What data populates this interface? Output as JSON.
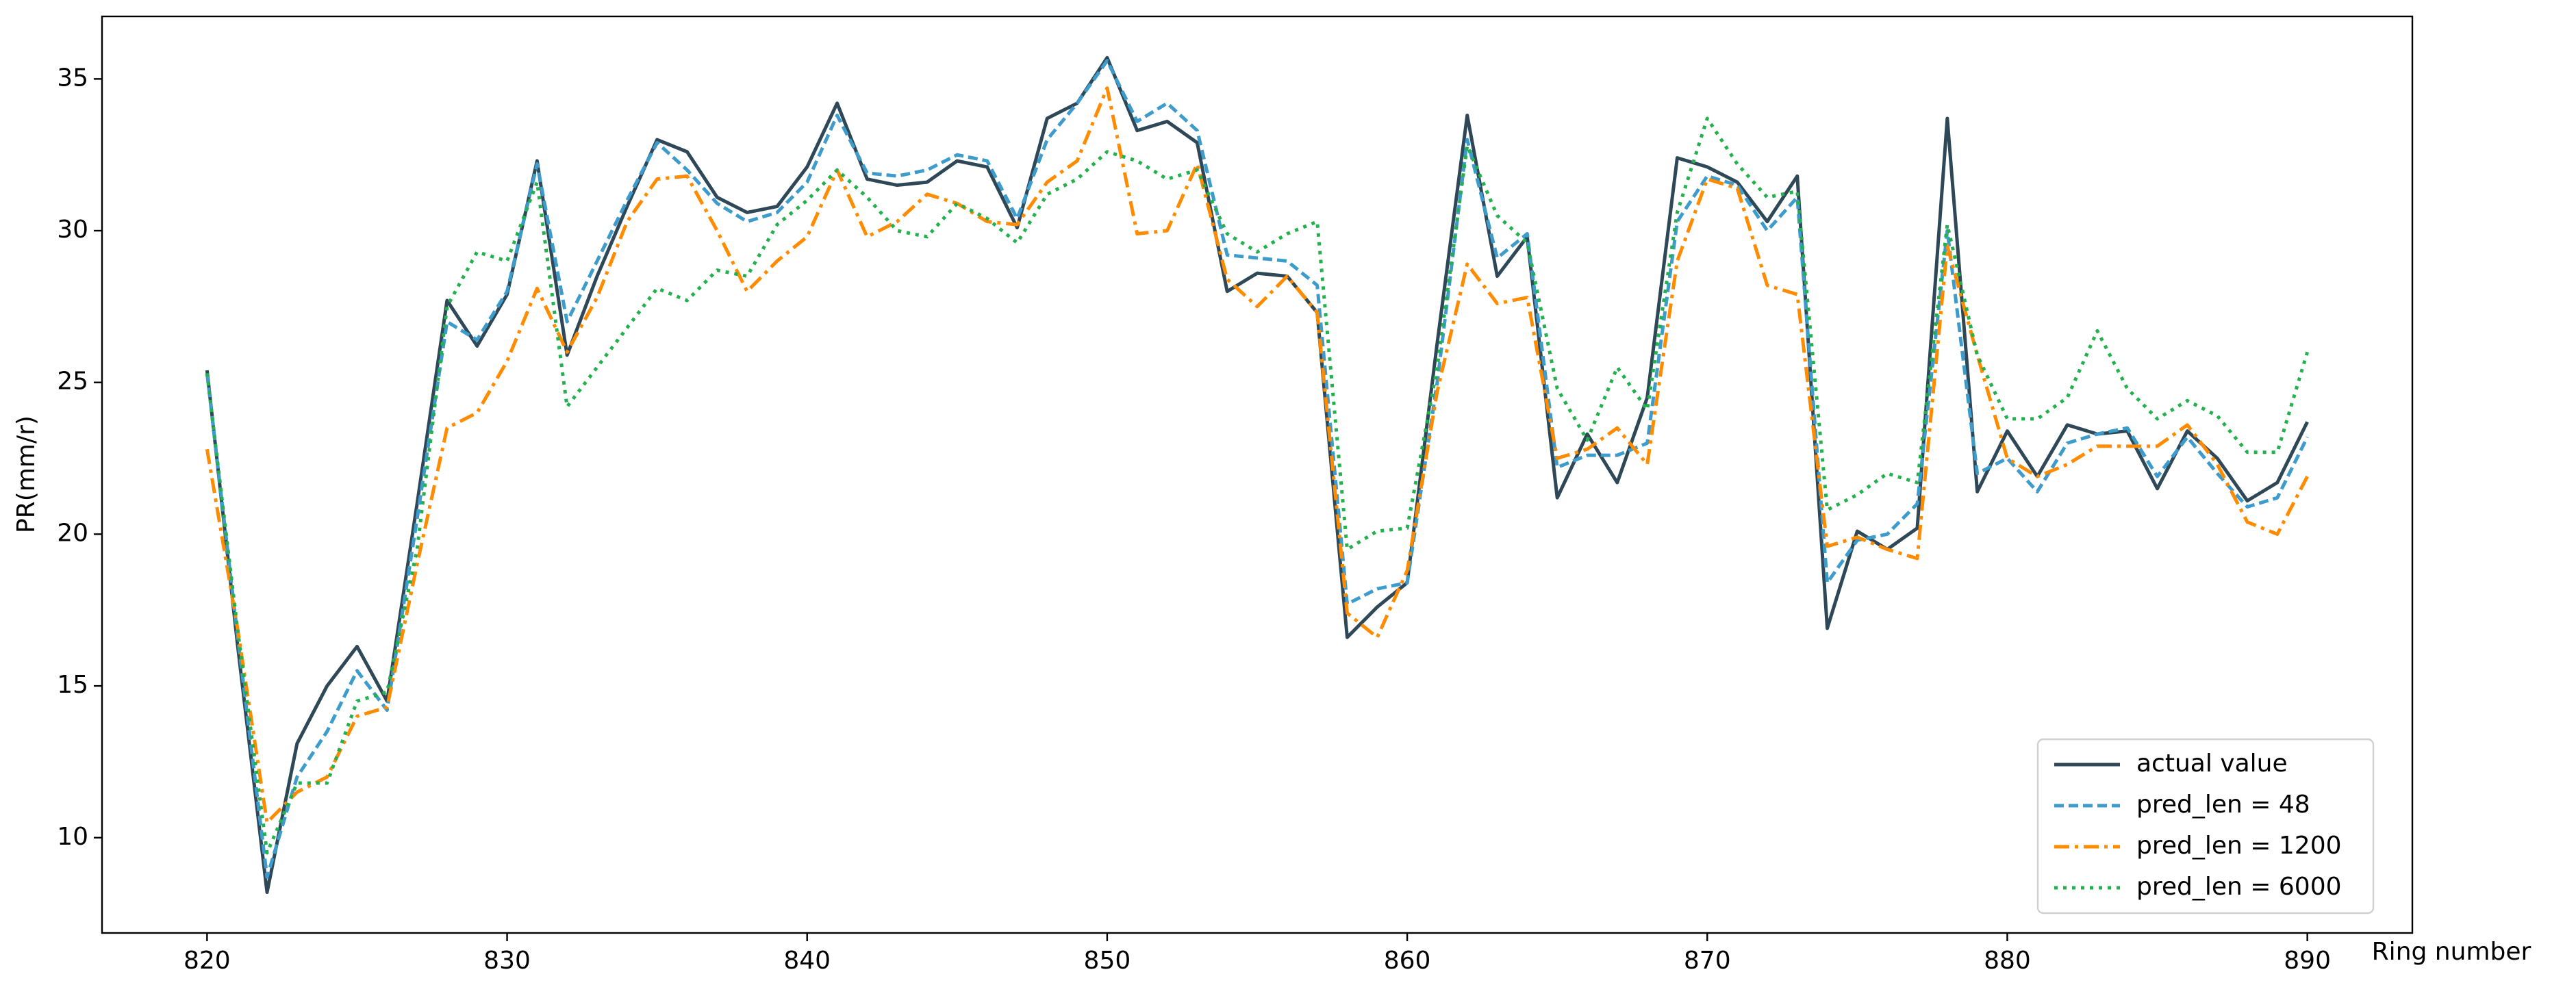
{
  "chart_data": {
    "type": "line",
    "xlabel": "Ring number",
    "ylabel": "PR(mm/r)",
    "x": [
      820,
      821,
      822,
      823,
      824,
      825,
      826,
      827,
      828,
      829,
      830,
      831,
      832,
      833,
      834,
      835,
      836,
      837,
      838,
      839,
      840,
      841,
      842,
      843,
      844,
      845,
      846,
      847,
      848,
      849,
      850,
      851,
      852,
      853,
      854,
      855,
      856,
      857,
      858,
      859,
      860,
      861,
      862,
      863,
      864,
      865,
      866,
      867,
      868,
      869,
      870,
      871,
      872,
      873,
      874,
      875,
      876,
      877,
      878,
      879,
      880,
      881,
      882,
      883,
      884,
      885,
      886,
      887,
      888,
      889,
      890
    ],
    "series": [
      {
        "name": "actual value",
        "color": "#2f4858",
        "style": "solid",
        "values": [
          25.4,
          16.5,
          8.2,
          13.1,
          15.0,
          16.3,
          14.5,
          21.0,
          27.7,
          26.2,
          27.9,
          32.3,
          25.9,
          28.5,
          30.8,
          33.0,
          32.6,
          31.1,
          30.6,
          30.8,
          32.1,
          34.2,
          31.7,
          31.5,
          31.6,
          32.3,
          32.1,
          30.1,
          33.7,
          34.2,
          35.7,
          33.3,
          33.6,
          32.9,
          28.0,
          28.6,
          28.5,
          27.3,
          16.6,
          17.6,
          18.4,
          26.3,
          33.8,
          28.5,
          29.8,
          21.2,
          23.3,
          21.7,
          24.5,
          32.4,
          32.1,
          31.6,
          30.3,
          31.8,
          16.9,
          20.1,
          19.5,
          20.2,
          33.7,
          21.4,
          23.4,
          21.9,
          23.6,
          23.3,
          23.4,
          21.5,
          23.4,
          22.5,
          21.1,
          21.7,
          23.7
        ]
      },
      {
        "name": "pred_len = 48",
        "color": "#3d9ccc",
        "style": "dashed",
        "values": [
          25.3,
          16.8,
          8.7,
          12.0,
          13.5,
          15.5,
          14.2,
          20.5,
          27.0,
          26.4,
          28.0,
          32.2,
          27.0,
          29.0,
          31.0,
          32.9,
          32.0,
          30.9,
          30.3,
          30.6,
          31.6,
          33.8,
          31.9,
          31.8,
          32.0,
          32.5,
          32.3,
          30.4,
          33.0,
          34.2,
          35.6,
          33.6,
          34.2,
          33.3,
          29.2,
          29.1,
          29.0,
          28.2,
          17.7,
          18.2,
          18.4,
          25.0,
          33.0,
          29.1,
          29.9,
          22.2,
          22.6,
          22.6,
          23.0,
          30.3,
          31.8,
          31.5,
          30.0,
          31.1,
          18.4,
          19.8,
          20.0,
          21.0,
          30.0,
          22.0,
          22.5,
          21.4,
          23.0,
          23.3,
          23.5,
          21.9,
          23.2,
          22.0,
          20.9,
          21.2,
          23.2
        ]
      },
      {
        "name": "pred_len = 1200",
        "color": "#ff8c00",
        "style": "dashdot",
        "values": [
          22.8,
          17.0,
          10.5,
          11.5,
          12.0,
          14.0,
          14.3,
          19.0,
          23.5,
          24.0,
          25.7,
          28.1,
          26.0,
          27.8,
          30.3,
          31.7,
          31.8,
          30.0,
          28.0,
          29.0,
          29.8,
          32.0,
          29.8,
          30.3,
          31.2,
          30.9,
          30.3,
          30.2,
          31.6,
          32.3,
          34.7,
          29.9,
          30.0,
          32.2,
          28.4,
          27.5,
          28.5,
          27.3,
          17.4,
          16.6,
          18.8,
          24.7,
          28.9,
          27.6,
          27.8,
          22.5,
          22.8,
          23.5,
          22.3,
          29.0,
          31.7,
          31.4,
          28.2,
          27.9,
          19.6,
          19.9,
          19.5,
          19.2,
          29.5,
          25.9,
          22.5,
          21.9,
          22.3,
          22.9,
          22.9,
          22.9,
          23.6,
          22.3,
          20.4,
          20.0,
          21.9
        ]
      },
      {
        "name": "pred_len = 6000",
        "color": "#22b14c",
        "style": "dotted",
        "values": [
          25.3,
          17.0,
          9.5,
          11.8,
          11.8,
          14.5,
          14.8,
          19.5,
          27.5,
          29.3,
          29.0,
          31.6,
          24.2,
          25.5,
          26.8,
          28.1,
          27.7,
          28.7,
          28.5,
          30.2,
          31.0,
          32.0,
          31.1,
          30.0,
          29.8,
          30.9,
          30.4,
          29.6,
          31.2,
          31.7,
          32.6,
          32.3,
          31.7,
          32.0,
          29.9,
          29.3,
          29.9,
          30.3,
          19.5,
          20.1,
          20.2,
          25.5,
          32.8,
          30.5,
          29.6,
          24.8,
          23.1,
          25.5,
          24.1,
          30.6,
          33.7,
          32.2,
          31.1,
          31.3,
          20.8,
          21.3,
          22.0,
          21.7,
          30.2,
          25.9,
          23.8,
          23.8,
          24.5,
          26.7,
          24.8,
          23.8,
          24.4,
          23.9,
          22.7,
          22.7,
          26.0
        ]
      }
    ],
    "xlim": [
      816.5,
      893.5
    ],
    "xticks": [
      820,
      830,
      840,
      850,
      860,
      870,
      880,
      890
    ],
    "ylim": [
      6.86,
      37.06
    ],
    "yticks": [
      10,
      15,
      20,
      25,
      30,
      35
    ],
    "legend": "lower right",
    "grid": false
  }
}
